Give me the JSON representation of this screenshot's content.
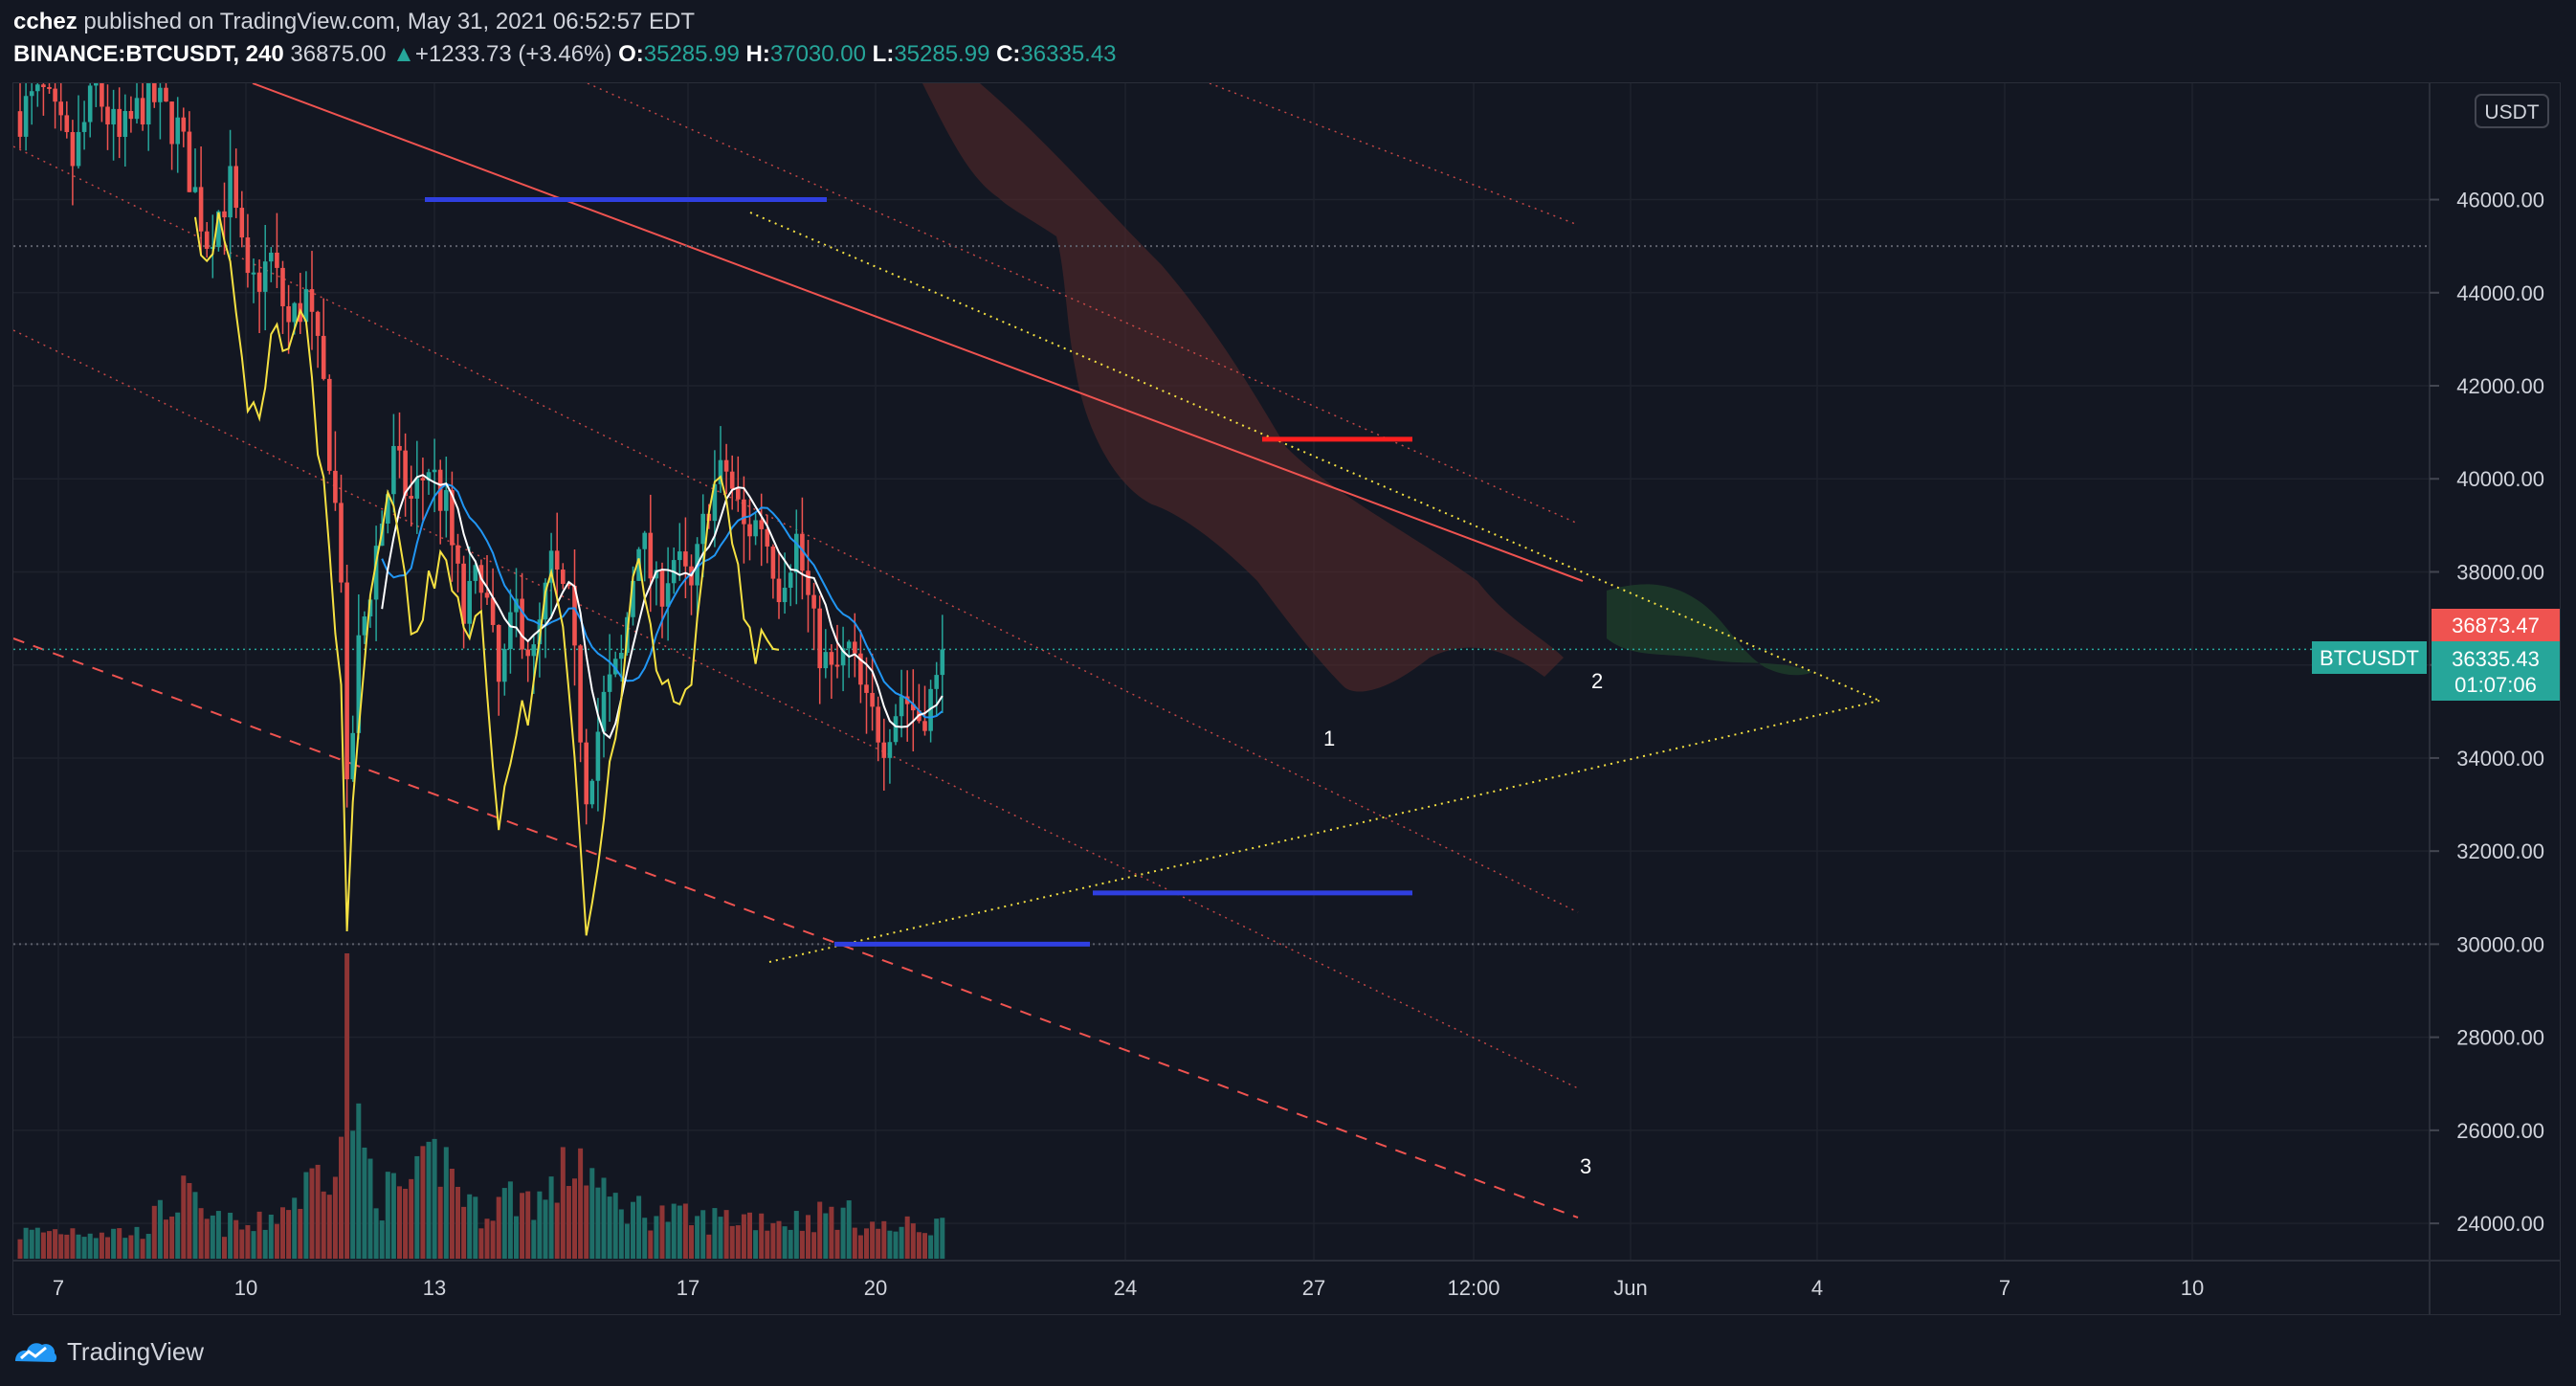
{
  "header": {
    "author": "cchez",
    "published_text": "published on TradingView.com, May 31, 2021 06:52:57 EDT",
    "symbol": "BINANCE:BTCUSDT, 240",
    "last": "36875.00",
    "change_arrow": "▲",
    "change": "+1233.73 (+3.46%)",
    "o_label": "O:",
    "o_value": "35285.99",
    "h_label": "H:",
    "h_value": "37030.00",
    "l_label": "L:",
    "l_value": "35285.99",
    "c_label": "C:",
    "c_value": "36335.43"
  },
  "footer": {
    "brand": "TradingView"
  },
  "colors": {
    "background": "#131722",
    "grid": "#1e222d",
    "bull": "#26a69a",
    "bear": "#ef5350",
    "bull_volume": "#1e6e68",
    "bear_volume": "#8e3535",
    "ma_fast": "#ffffff",
    "ma_slow": "#2196f3",
    "yellow": "#f5e142",
    "level_blue": "#2f3fe0",
    "level_red": "#ff1f1f",
    "cloud_red": "#5a2a2a",
    "cloud_green": "#1e3d2a"
  },
  "chart_data": {
    "type": "candlestick",
    "symbol": "BINANCE:BTCUSDT",
    "interval": "240",
    "currency_label": "USDT",
    "y_ticks": [
      "24000.00",
      "26000.00",
      "28000.00",
      "30000.00",
      "32000.00",
      "34000.00",
      "36000.00",
      "38000.00",
      "40000.00",
      "42000.00",
      "44000.00",
      "46000.00"
    ],
    "x_ticks": [
      "7",
      "10",
      "13",
      "17",
      "20",
      "24",
      "27",
      "12:00",
      "Jun",
      "4",
      "7",
      "10"
    ],
    "y_range": [
      23200,
      48500
    ],
    "last_price_label": "36873.47",
    "series_label": "BTCUSDT",
    "series_price_label": "36335.43",
    "countdown_label": "01:07:06",
    "annotations": [
      "1",
      "2",
      "3"
    ],
    "horizontal_levels": [
      {
        "price": 46000,
        "color": "level_blue"
      },
      {
        "price": 40850,
        "color": "level_red"
      },
      {
        "price": 31100,
        "color": "level_blue"
      },
      {
        "price": 30000,
        "color": "level_blue"
      }
    ],
    "dotted_levels": [
      45000,
      30000,
      36335.43
    ],
    "ohlc_anchors": [
      [
        0,
        47900
      ],
      [
        4,
        48200
      ],
      [
        9,
        46800
      ],
      [
        13,
        48400
      ],
      [
        17,
        47200
      ],
      [
        22,
        48300
      ],
      [
        27,
        47500
      ],
      [
        32,
        45200
      ],
      [
        36,
        46300
      ],
      [
        39,
        44000
      ],
      [
        43,
        44700
      ],
      [
        46,
        43300
      ],
      [
        49,
        43900
      ],
      [
        52,
        41900
      ],
      [
        55,
        38100
      ],
      [
        56,
        33000
      ],
      [
        58,
        36300
      ],
      [
        61,
        38500
      ],
      [
        64,
        40400
      ],
      [
        67,
        39500
      ],
      [
        70,
        40300
      ],
      [
        73,
        39300
      ],
      [
        76,
        37000
      ],
      [
        79,
        38100
      ],
      [
        82,
        35500
      ],
      [
        85,
        37200
      ],
      [
        88,
        36100
      ],
      [
        91,
        38100
      ],
      [
        94,
        37200
      ],
      [
        97,
        33400
      ],
      [
        100,
        35200
      ],
      [
        103,
        36100
      ],
      [
        106,
        38900
      ],
      [
        109,
        37500
      ],
      [
        112,
        38300
      ],
      [
        115,
        37500
      ],
      [
        118,
        39600
      ],
      [
        121,
        40200
      ],
      [
        124,
        38900
      ],
      [
        127,
        39100
      ],
      [
        130,
        37800
      ],
      [
        133,
        38700
      ],
      [
        136,
        36700
      ],
      [
        139,
        35700
      ],
      [
        142,
        36300
      ],
      [
        145,
        35000
      ],
      [
        148,
        34500
      ],
      [
        151,
        35400
      ],
      [
        154,
        34900
      ],
      [
        157,
        35500
      ],
      [
        158,
        36335
      ]
    ],
    "volume_anchors": [
      [
        0,
        0.12
      ],
      [
        10,
        0.14
      ],
      [
        20,
        0.12
      ],
      [
        28,
        0.3
      ],
      [
        32,
        0.18
      ],
      [
        40,
        0.14
      ],
      [
        48,
        0.3
      ],
      [
        52,
        0.45
      ],
      [
        55,
        0.6
      ],
      [
        56,
        1.0
      ],
      [
        58,
        0.55
      ],
      [
        62,
        0.3
      ],
      [
        68,
        0.35
      ],
      [
        72,
        0.5
      ],
      [
        78,
        0.22
      ],
      [
        84,
        0.3
      ],
      [
        90,
        0.28
      ],
      [
        96,
        0.5
      ],
      [
        100,
        0.28
      ],
      [
        108,
        0.22
      ],
      [
        116,
        0.18
      ],
      [
        124,
        0.2
      ],
      [
        132,
        0.18
      ],
      [
        140,
        0.22
      ],
      [
        148,
        0.14
      ],
      [
        158,
        0.16
      ]
    ]
  }
}
